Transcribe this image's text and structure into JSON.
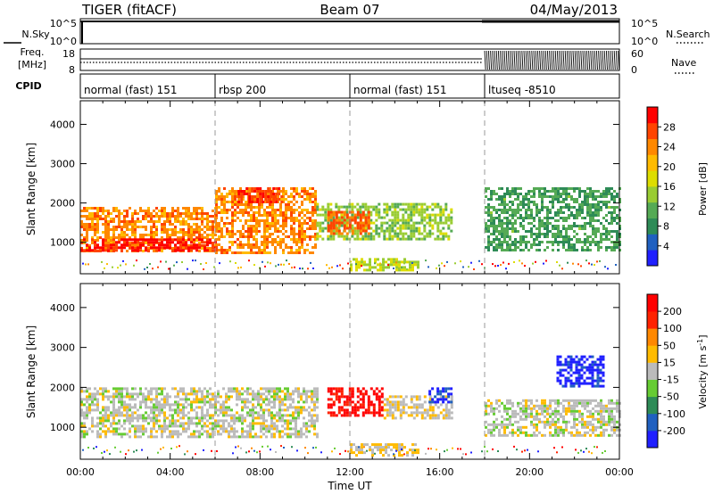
{
  "header": {
    "title": "TIGER (fitACF)",
    "beam": "Beam 07",
    "date": "04/May/2013"
  },
  "panels": {
    "nsky": {
      "label": "N.Sky",
      "ticks": [
        "10^5",
        "10^0"
      ],
      "right_ticks": [
        "10^5",
        "10^0"
      ],
      "right_label": "N.Search"
    },
    "freq": {
      "label_line1": "Freq.",
      "label_line2": "[MHz]",
      "ticks": [
        "18",
        "8"
      ],
      "right_ticks": [
        "60",
        "0"
      ],
      "right_label": "Nave"
    },
    "cpid": {
      "label": "CPID",
      "segments": [
        {
          "start": 0,
          "end": 6,
          "text": "normal (fast) 151"
        },
        {
          "start": 6,
          "end": 12,
          "text": "rbsp 200"
        },
        {
          "start": 12,
          "end": 18,
          "text": "normal (fast) 151"
        },
        {
          "start": 18,
          "end": 24,
          "text": "ltuseq -8510"
        }
      ]
    }
  },
  "axes": {
    "x_ticks": [
      "00:00",
      "04:00",
      "08:00",
      "12:00",
      "16:00",
      "20:00",
      "00:00"
    ],
    "x_label": "Time UT",
    "y_label": "Slant Range [km]",
    "y_ticks": [
      "1000",
      "2000",
      "3000",
      "4000"
    ]
  },
  "colorbars": {
    "power": {
      "label": "Power [dB]",
      "ticks": [
        "28",
        "24",
        "20",
        "16",
        "12",
        "8",
        "4"
      ],
      "colors": [
        "#2020ff",
        "#2060c0",
        "#2e8b57",
        "#55aa55",
        "#99cc33",
        "#dddd00",
        "#ffbb00",
        "#ff8800",
        "#ff4400",
        "#ff0000"
      ]
    },
    "velocity": {
      "label": "Velocity [m s",
      "label_sup": "-1",
      "label_end": "]",
      "ticks": [
        "200",
        "100",
        "50",
        "15",
        "-15",
        "-50",
        "-100",
        "-200"
      ],
      "colors": [
        "#2020ff",
        "#2060c0",
        "#2e8b57",
        "#66cc33",
        "#bbbbbb",
        "#ffbb00",
        "#ff8800",
        "#ff2200",
        "#ff0000"
      ]
    }
  },
  "chart_data": [
    {
      "type": "heatmap",
      "title": "Power",
      "xlabel": "Time UT",
      "ylabel": "Slant Range [km]",
      "xlim": [
        0,
        24
      ],
      "ylim": [
        200,
        4600
      ],
      "colorbar_label": "Power [dB]",
      "color_range": [
        0,
        32
      ],
      "regions": [
        {
          "t0": 0,
          "t1": 6,
          "r0": 750,
          "r1": 1900,
          "value": 24
        },
        {
          "t0": 0,
          "t1": 6,
          "r0": 800,
          "r1": 1100,
          "value": 30
        },
        {
          "t0": 6,
          "t1": 10.5,
          "r0": 750,
          "r1": 2400,
          "value": 24
        },
        {
          "t0": 7,
          "t1": 9,
          "r0": 2000,
          "r1": 2400,
          "value": 28
        },
        {
          "t0": 10.5,
          "t1": 16.5,
          "r0": 1100,
          "r1": 2000,
          "value": 14
        },
        {
          "t0": 11,
          "t1": 12.8,
          "r0": 1200,
          "r1": 1800,
          "value": 26
        },
        {
          "t0": 18,
          "t1": 24,
          "r0": 800,
          "r1": 2400,
          "value": 10
        },
        {
          "t0": 12,
          "t1": 15,
          "r0": 300,
          "r1": 600,
          "value": 16
        }
      ]
    },
    {
      "type": "heatmap",
      "title": "Velocity",
      "xlabel": "Time UT",
      "ylabel": "Slant Range [km]",
      "xlim": [
        0,
        24
      ],
      "ylim": [
        200,
        4600
      ],
      "colorbar_label": "Velocity [m s-1]",
      "color_range": [
        -230,
        230
      ],
      "regions": [
        {
          "t0": 0,
          "t1": 10.5,
          "r0": 750,
          "r1": 2000,
          "value": 0
        },
        {
          "t0": 11,
          "t1": 13.5,
          "r0": 1300,
          "r1": 2000,
          "value": 200
        },
        {
          "t0": 13.5,
          "t1": 16.5,
          "r0": 1200,
          "r1": 1800,
          "value": 20
        },
        {
          "t0": 15.5,
          "t1": 16.5,
          "r0": 1600,
          "r1": 2000,
          "value": -200
        },
        {
          "t0": 18,
          "t1": 24,
          "r0": 800,
          "r1": 1700,
          "value": 0
        },
        {
          "t0": 21.2,
          "t1": 23.3,
          "r0": 2000,
          "r1": 2800,
          "value": -200
        },
        {
          "t0": 12,
          "t1": 15,
          "r0": 300,
          "r1": 600,
          "value": 20
        }
      ]
    }
  ]
}
